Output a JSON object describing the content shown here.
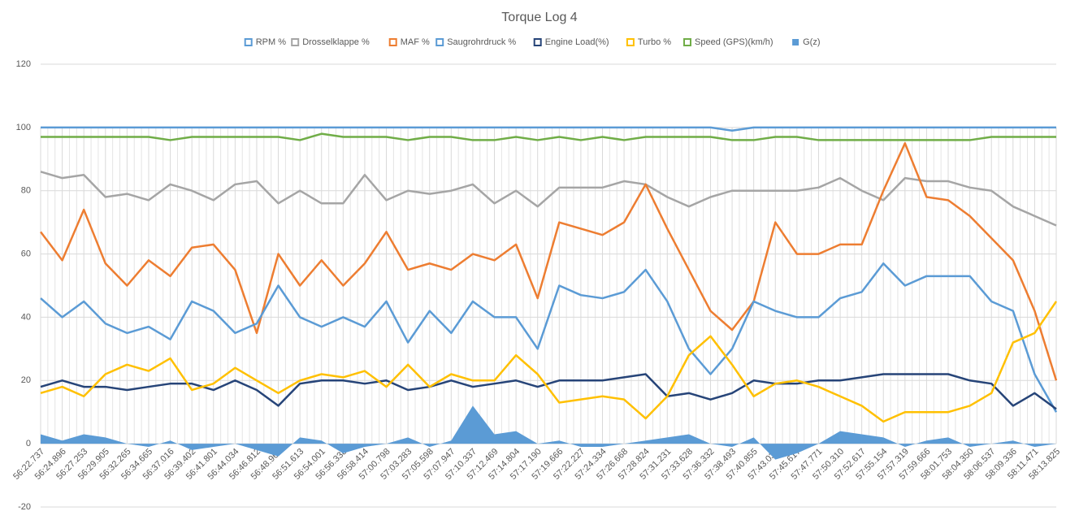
{
  "chart_data": {
    "type": "line",
    "title": "Torque Log 4",
    "categories": [
      "56:22.737",
      "56:24.896",
      "56:27.253",
      "56:29.905",
      "56:32.265",
      "56:34.665",
      "56:37.016",
      "56:39.402",
      "56:41.801",
      "56:44.034",
      "56:46.812",
      "56:48.967",
      "56:51.613",
      "56:54.001",
      "56:56.338",
      "56:58.414",
      "57:00.798",
      "57:03.283",
      "57:05.598",
      "57:07.947",
      "57:10.337",
      "57:12.469",
      "57:14.804",
      "57:17.190",
      "57:19.666",
      "57:22.227",
      "57:24.334",
      "57:26.668",
      "57:28.824",
      "57:31.231",
      "57:33.628",
      "57:36.332",
      "57:38.493",
      "57:40.855",
      "57:43.034",
      "57:45.617",
      "57:47.771",
      "57:50.310",
      "57:52.617",
      "57:55.154",
      "57:57.319",
      "57:59.666",
      "58:01.753",
      "58:04.350",
      "58:06.537",
      "58:09.336",
      "58:11.471",
      "58:13.825"
    ],
    "series": [
      {
        "name": "RPM %",
        "color": "#5b9bd5",
        "values": [
          100,
          100,
          100,
          100,
          100,
          100,
          100,
          100,
          100,
          100,
          100,
          100,
          100,
          100,
          100,
          100,
          100,
          100,
          100,
          100,
          100,
          100,
          100,
          100,
          100,
          100,
          100,
          100,
          100,
          100,
          100,
          100,
          99,
          100,
          100,
          100,
          100,
          100,
          100,
          100,
          100,
          100,
          100,
          100,
          100,
          100,
          100,
          100
        ]
      },
      {
        "name": "Drosselklappe %",
        "color": "#a5a5a5",
        "values": [
          86,
          84,
          85,
          78,
          79,
          77,
          82,
          80,
          77,
          82,
          83,
          76,
          80,
          76,
          76,
          85,
          77,
          80,
          79,
          80,
          82,
          76,
          80,
          75,
          81,
          81,
          81,
          83,
          82,
          78,
          75,
          78,
          80,
          80,
          80,
          80,
          81,
          84,
          80,
          77,
          84,
          83,
          83,
          81,
          80,
          75,
          72,
          69
        ]
      },
      {
        "name": "MAF %",
        "color": "#ed7d31",
        "values": [
          67,
          58,
          74,
          57,
          50,
          58,
          53,
          62,
          63,
          55,
          35,
          60,
          50,
          58,
          50,
          57,
          67,
          55,
          57,
          55,
          60,
          58,
          63,
          46,
          70,
          68,
          66,
          70,
          82,
          68,
          55,
          42,
          36,
          45,
          70,
          60,
          60,
          63,
          63,
          80,
          95,
          78,
          77,
          72,
          65,
          58,
          42,
          20
        ]
      },
      {
        "name": "Saugrohrdruck %",
        "color": "#5b9bd5",
        "values": [
          46,
          40,
          45,
          38,
          35,
          37,
          33,
          45,
          42,
          35,
          38,
          50,
          40,
          37,
          40,
          37,
          45,
          32,
          42,
          35,
          45,
          40,
          40,
          30,
          50,
          47,
          46,
          48,
          55,
          45,
          30,
          22,
          30,
          45,
          42,
          40,
          40,
          46,
          48,
          57,
          50,
          53,
          53,
          53,
          45,
          42,
          22,
          10
        ]
      },
      {
        "name": "Engine Load(%)",
        "color": "#264478",
        "values": [
          18,
          20,
          18,
          18,
          17,
          18,
          19,
          19,
          17,
          20,
          17,
          12,
          19,
          20,
          20,
          19,
          20,
          17,
          18,
          20,
          18,
          19,
          20,
          18,
          20,
          20,
          20,
          21,
          22,
          15,
          16,
          14,
          16,
          20,
          19,
          19,
          20,
          20,
          21,
          22,
          22,
          22,
          22,
          20,
          19,
          12,
          16,
          11
        ]
      },
      {
        "name": "Turbo %",
        "color": "#ffc000",
        "values": [
          16,
          18,
          15,
          22,
          25,
          23,
          27,
          17,
          19,
          24,
          20,
          16,
          20,
          22,
          21,
          23,
          18,
          25,
          18,
          22,
          20,
          20,
          28,
          22,
          13,
          14,
          15,
          14,
          8,
          15,
          28,
          34,
          25,
          15,
          19,
          20,
          18,
          15,
          12,
          7,
          10,
          10,
          10,
          12,
          16,
          32,
          35,
          45
        ]
      },
      {
        "name": "Speed (GPS)(km/h)",
        "color": "#70ad47",
        "values": [
          97,
          97,
          97,
          97,
          97,
          97,
          96,
          97,
          97,
          97,
          97,
          97,
          96,
          98,
          97,
          97,
          97,
          96,
          97,
          97,
          96,
          96,
          97,
          96,
          97,
          96,
          97,
          96,
          97,
          97,
          97,
          97,
          96,
          96,
          97,
          97,
          96,
          96,
          96,
          96,
          96,
          96,
          96,
          96,
          97,
          97,
          97,
          97
        ]
      },
      {
        "name": "G(z)",
        "color": "#5b9bd5",
        "area": true,
        "values": [
          3,
          1,
          3,
          2,
          0,
          -1,
          1,
          -2,
          -1,
          0,
          -2,
          -4,
          2,
          1,
          -3,
          -1,
          0,
          2,
          -1,
          1,
          12,
          3,
          4,
          0,
          1,
          -1,
          -1,
          0,
          1,
          2,
          3,
          0,
          -1,
          2,
          -5,
          -3,
          0,
          4,
          3,
          2,
          -1,
          1,
          2,
          -1,
          0,
          1,
          -1,
          0
        ]
      }
    ],
    "ylim": [
      -20,
      120
    ],
    "yticks": [
      -20,
      0,
      20,
      40,
      60,
      80,
      100,
      120
    ],
    "grid": true,
    "legend": "top"
  }
}
